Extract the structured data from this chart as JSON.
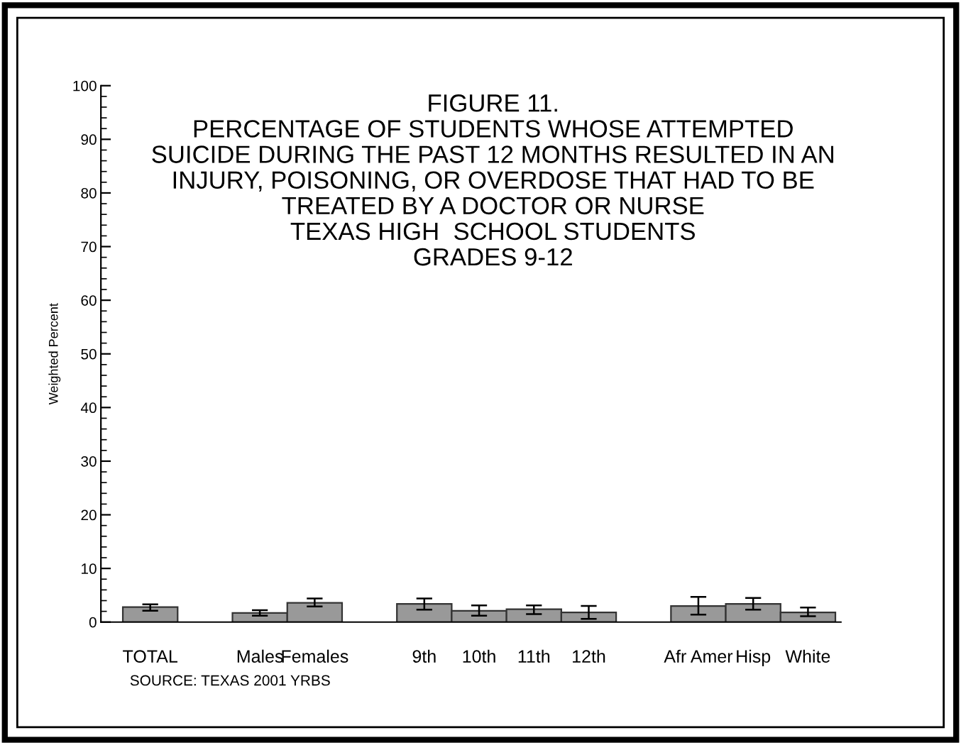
{
  "chart_data": {
    "type": "bar",
    "title": "FIGURE 11.\nPERCENTAGE OF STUDENTS WHOSE ATTEMPTED\nSUICIDE DURING THE PAST 12 MONTHS RESULTED IN AN\nINJURY, POISONING, OR OVERDOSE THAT HAD TO BE\nTREATED BY A DOCTOR OR NURSE\nTEXAS HIGH  SCHOOL STUDENTS\nGRADES 9-12",
    "ylabel": "Weighted Percent",
    "categories": [
      "TOTAL",
      null,
      "Males",
      "Females",
      null,
      "9th",
      "10th",
      "11th",
      "12th",
      null,
      "Afr Amer",
      "Hisp",
      "White"
    ],
    "values": [
      2.8,
      null,
      1.7,
      3.6,
      null,
      3.4,
      2.1,
      2.4,
      1.8,
      null,
      3.0,
      3.4,
      1.8
    ],
    "errors": [
      [
        2.1,
        3.3
      ],
      null,
      [
        1.2,
        2.2
      ],
      [
        2.9,
        4.4
      ],
      null,
      [
        2.3,
        4.4
      ],
      [
        1.2,
        3.1
      ],
      [
        1.5,
        3.1
      ],
      [
        0.6,
        3.0
      ],
      null,
      [
        1.4,
        4.7
      ],
      [
        2.3,
        4.5
      ],
      [
        1.1,
        2.7
      ]
    ],
    "color": "#999999",
    "ylim": [
      0,
      100
    ],
    "yticks": [
      0,
      10,
      20,
      30,
      40,
      50,
      60,
      70,
      80,
      90,
      100
    ],
    "grid": false,
    "legend": false,
    "annotations": [
      "SOURCE: TEXAS 2001 YRBS"
    ]
  }
}
